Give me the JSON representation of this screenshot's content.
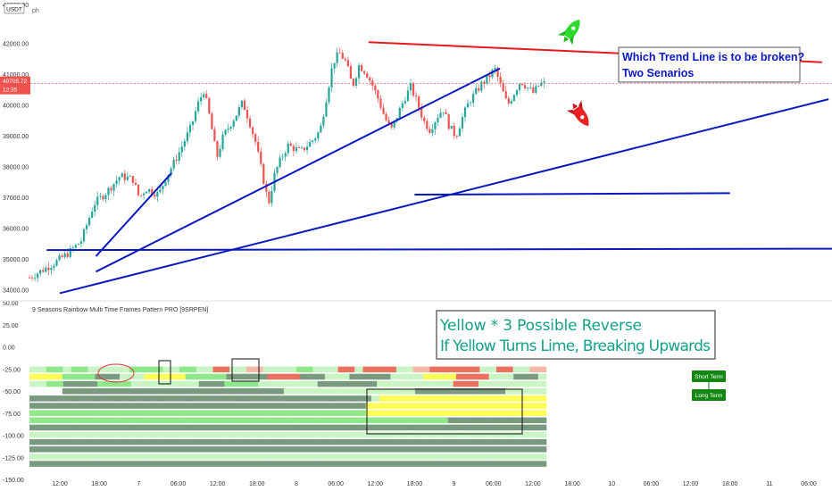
{
  "header": {
    "top_price_label": "43000.00",
    "currency_label": "USDT",
    "symbol_text": "ph"
  },
  "price_badge": {
    "price": "40705.72",
    "countdown": "12:35"
  },
  "colors": {
    "up": "#26a69a",
    "down": "#ef5350",
    "trend_blue": "#0a18c0",
    "resistance_red": "#e51b1b",
    "yellow": "#ffff55",
    "lime": "#b9f3b4",
    "gray_green": "#889988"
  },
  "annotations": {
    "question_line1": "Which Trend Line is to be broken?",
    "question_line2": "Two Senarios",
    "indicator_line1": "Yellow  * 3 Possible Reverse",
    "indicator_line2": "If Yellow Turns Lime, Breaking Upwards"
  },
  "indicator": {
    "title": "9 Seasons Rainbow Multi Time Frames Pattern PRO [9SRPEN]",
    "buttons": {
      "short_term": "Short Term",
      "long_term": "Long Term"
    }
  },
  "icons": {
    "up_rocket": "rocket-up-icon",
    "down_rocket": "rocket-down-icon"
  },
  "chart_data": {
    "type": "candlestick",
    "title": "",
    "price_axis": {
      "ticks": [
        "42000.00",
        "41000.00",
        "40000.00",
        "39000.00",
        "38000.00",
        "37000.00",
        "36000.00",
        "35000.00",
        "34000.00"
      ],
      "tick_values": [
        42000,
        41000,
        40000,
        39000,
        38000,
        37000,
        36000,
        35000,
        34000
      ],
      "range": [
        33600,
        43050
      ]
    },
    "indicator_axis": {
      "ticks": [
        "50.00",
        "25.00",
        "0.00",
        "-25.00",
        "-50.00",
        "-75.00",
        "-100.00",
        "-125.00",
        "-150.00"
      ],
      "tick_values": [
        50,
        25,
        0,
        -25,
        -50,
        -75,
        -100,
        -125,
        -150
      ],
      "range": [
        -156,
        57
      ]
    },
    "time_axis": {
      "ticks": [
        "12:00",
        "18:00",
        "7",
        "06:00",
        "12:00",
        "18:00",
        "8",
        "06:00",
        "12:00",
        "18:00",
        "9",
        "06:00",
        "12:00",
        "18:00",
        "10",
        "06:00",
        "12:00",
        "18:00",
        "11",
        "06:00"
      ],
      "hours": [
        12,
        18,
        24,
        30,
        36,
        42,
        48,
        54,
        60,
        66,
        72,
        78,
        84,
        90,
        96,
        102,
        108,
        114,
        120,
        126
      ]
    },
    "price_path": [
      [
        0,
        34400
      ],
      [
        4,
        34900
      ],
      [
        6,
        35200
      ],
      [
        8,
        35600
      ],
      [
        9,
        36200
      ],
      [
        10,
        36800
      ],
      [
        12,
        37200
      ],
      [
        14,
        37700
      ],
      [
        16,
        37600
      ],
      [
        17,
        37000
      ],
      [
        18,
        37300
      ],
      [
        20,
        37100
      ],
      [
        21,
        37600
      ],
      [
        23,
        38400
      ],
      [
        25,
        39300
      ],
      [
        26,
        40000
      ],
      [
        27,
        40500
      ],
      [
        28,
        39500
      ],
      [
        29,
        38300
      ],
      [
        30,
        39000
      ],
      [
        32,
        39700
      ],
      [
        33,
        40100
      ],
      [
        34,
        39500
      ],
      [
        35,
        38800
      ],
      [
        36,
        37800
      ],
      [
        37,
        36800
      ],
      [
        38,
        37800
      ],
      [
        39,
        38300
      ],
      [
        40,
        38700
      ],
      [
        42,
        38500
      ],
      [
        43,
        38700
      ],
      [
        44,
        38900
      ],
      [
        45,
        39200
      ],
      [
        46,
        40300
      ],
      [
        47,
        41400
      ],
      [
        48,
        41700
      ],
      [
        49,
        41400
      ],
      [
        50,
        40600
      ],
      [
        51,
        41300
      ],
      [
        52,
        41100
      ],
      [
        53,
        40700
      ],
      [
        54,
        40200
      ],
      [
        55,
        39600
      ],
      [
        56,
        39200
      ],
      [
        57,
        39700
      ],
      [
        58,
        40200
      ],
      [
        59,
        40600
      ],
      [
        60,
        40100
      ],
      [
        61,
        39500
      ],
      [
        62,
        39200
      ],
      [
        63,
        39600
      ],
      [
        64,
        39900
      ],
      [
        65,
        39300
      ],
      [
        66,
        39000
      ],
      [
        67,
        39600
      ],
      [
        68,
        40100
      ],
      [
        69,
        40400
      ],
      [
        70,
        40700
      ],
      [
        71,
        40900
      ],
      [
        72,
        41200
      ],
      [
        73,
        40600
      ],
      [
        74,
        40000
      ],
      [
        75,
        40400
      ],
      [
        76,
        40800
      ],
      [
        77,
        40600
      ],
      [
        78,
        40400
      ],
      [
        79,
        40700
      ],
      [
        80,
        40705.72
      ]
    ],
    "trend_lines": [
      {
        "color": "blue",
        "from": [
          5.5,
          35100
        ],
        "to": [
          17,
          37800
        ]
      },
      {
        "color": "blue",
        "from": [
          0,
          33900
        ],
        "to": [
          117,
          40200
        ]
      },
      {
        "color": "blue",
        "from": [
          5.5,
          34600
        ],
        "to": [
          67,
          41200
        ]
      },
      {
        "color": "blue",
        "from": [
          -2,
          35300
        ],
        "to": [
          128,
          35350
        ]
      },
      {
        "color": "blue",
        "from": [
          54,
          37100
        ],
        "to": [
          102,
          37150
        ]
      },
      {
        "color": "red",
        "from": [
          47,
          42050
        ],
        "to": [
          116,
          41400
        ]
      }
    ],
    "indicator_rows": 14,
    "current_price": 40705.72,
    "grid": false
  }
}
